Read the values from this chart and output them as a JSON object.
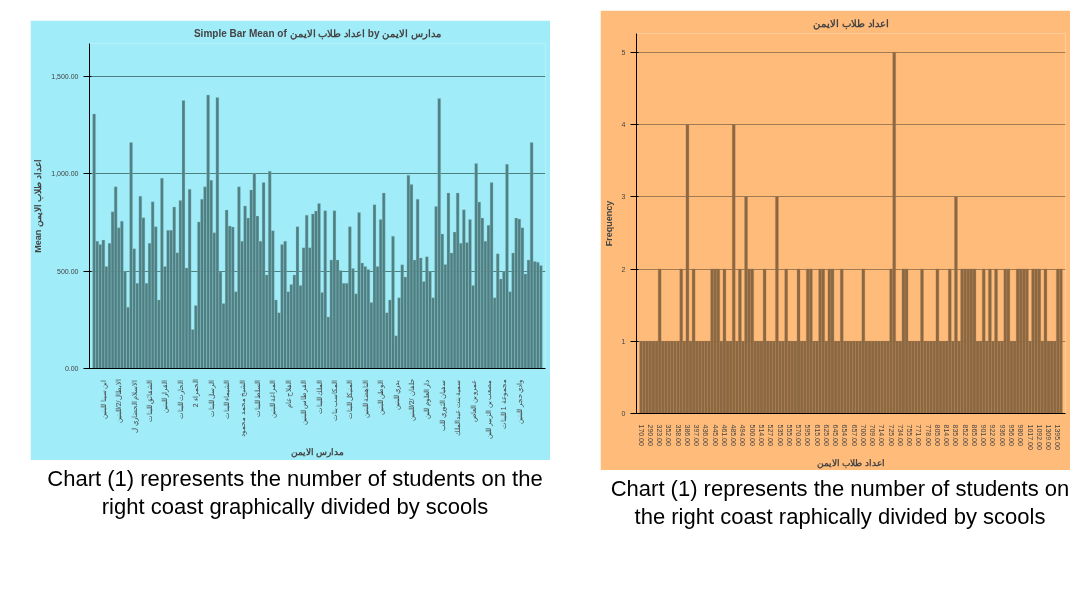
{
  "chart_data": [
    {
      "type": "bar",
      "title": "Simple Bar Mean of اعداد طلاب الايمن by مدارس الايمن",
      "xlabel": "مدارس الايمن",
      "ylabel": "Mean اعداد طلاب الايمن",
      "color": "#4f7f82",
      "categories": [
        null,
        null,
        null,
        "ابن سينا للبنين",
        null,
        null,
        null,
        null,
        "الابطال/2/للبنين",
        null,
        null,
        null,
        null,
        "الاسلام الحضاري ل",
        null,
        null,
        null,
        null,
        "الشقائق للبنات",
        null,
        null,
        null,
        null,
        "القرار للبنين",
        null,
        null,
        null,
        null,
        "الحارث للبنات",
        null,
        null,
        null,
        null,
        "الحمراء 2",
        null,
        null,
        null,
        null,
        "الرسل للبنات",
        null,
        null,
        null,
        null,
        "الشيماء للبنات",
        null,
        null,
        null,
        null,
        "الشيخ محمد محمود",
        null,
        null,
        null,
        null,
        "السلط للبنات",
        null,
        null,
        null,
        null,
        "المراغة للبنين",
        null,
        null,
        null,
        null,
        "الفلاح عام",
        null,
        null,
        null,
        null,
        "القرطاس للبنين",
        null,
        null,
        null,
        null,
        "الملك للبنات",
        null,
        null,
        null,
        null,
        "المكاسب بنات",
        null,
        null,
        null,
        null,
        "المنيكل للبنات",
        null,
        null,
        null,
        null,
        "الناهضة للبنين",
        null,
        null,
        null,
        null,
        "الوطن للبنين",
        null,
        null,
        null,
        null,
        "بدري للبنين",
        null,
        null,
        null,
        null,
        "حلفان /2/للبنين",
        null,
        null,
        null,
        null,
        "دار العلوم للبن",
        null,
        null,
        null,
        null,
        "سفيان الثوري للب",
        null,
        null,
        null,
        null,
        "سمية بنت عبدالملك",
        null,
        null,
        null,
        null,
        "عمرو بن العاص",
        null,
        null,
        null,
        null,
        "مصعب بن الزبير للبن",
        null,
        null,
        null,
        null,
        "مجموعة 1 للبنات",
        null,
        null,
        null,
        null,
        "وادي حجر للبنين",
        null,
        null,
        null,
        null,
        null,
        null,
        null
      ],
      "values": [
        1308,
        654,
        637,
        660,
        524,
        643,
        805,
        934,
        723,
        757,
        498,
        315,
        1161,
        615,
        438,
        885,
        775,
        438,
        643,
        857,
        729,
        352,
        978,
        524,
        710,
        710,
        830,
        595,
        863,
        1377,
        516,
        921,
        200,
        324,
        753,
        870,
        934,
        1405,
        967,
        697,
        1392,
        496,
        334,
        814,
        732,
        727,
        395,
        934,
        654,
        835,
        773,
        917,
        1003,
        783,
        654,
        956,
        481,
        1014,
        708,
        352,
        287,
        637,
        654,
        395,
        432,
        481,
        729,
        427,
        621,
        788,
        621,
        794,
        809,
        848,
        391,
        811,
        265,
        557,
        811,
        557,
        503,
        438,
        438,
        729,
        514,
        384,
        801,
        542,
        524,
        509,
        339,
        842,
        524,
        766,
        902,
        287,
        352,
        680,
        168,
        363,
        533,
        470,
        993,
        945,
        557,
        870,
        568,
        447,
        574,
        498,
        363,
        833,
        1388,
        691,
        535,
        902,
        594,
        701,
        902,
        643,
        816,
        647,
        766,
        427,
        1053,
        855,
        773,
        654,
        736,
        956,
        363,
        589,
        460,
        498,
        1049,
        395,
        594,
        773,
        768,
        723,
        486,
        557,
        1161,
        550,
        546,
        529
      ],
      "ylim": [
        0,
        1670
      ],
      "yticks": [
        {
          "value": 0,
          "label": "0.00"
        },
        {
          "value": 500,
          "label": "500.00"
        },
        {
          "value": 1000,
          "label": "1,000.00"
        },
        {
          "value": 1500,
          "label": "1,500.00"
        }
      ],
      "grid": "y",
      "annotations": [
        "Chart (1) represents the number of students on the right coast graphically divided by scools"
      ]
    },
    {
      "type": "bar",
      "title": "اعداد طلاب الايمن",
      "xlabel": "اعداد طلاب الايمن",
      "ylabel": "Frequency",
      "color": "#8b6842",
      "categories": [
        "170.00",
        null,
        null,
        "290.00",
        null,
        null,
        "323.00",
        null,
        null,
        "352.00",
        null,
        null,
        "358.00",
        null,
        null,
        "386.00",
        null,
        null,
        "397.00",
        null,
        null,
        "436.00",
        null,
        null,
        "445.00",
        null,
        null,
        "461.00",
        null,
        null,
        "485.00",
        null,
        null,
        "494.00",
        null,
        null,
        "500.00",
        null,
        null,
        "514.00",
        null,
        null,
        "527.00",
        null,
        null,
        "535.00",
        null,
        null,
        "555.00",
        null,
        null,
        "570.00",
        null,
        null,
        "595.00",
        null,
        null,
        "615.00",
        null,
        null,
        "625.00",
        null,
        null,
        "645.00",
        null,
        null,
        "654.00",
        null,
        null,
        "657.00",
        null,
        null,
        "700.00",
        null,
        null,
        "709.00",
        null,
        null,
        "714.00",
        null,
        null,
        "725.00",
        null,
        null,
        "734.00",
        null,
        null,
        "755.00",
        null,
        null,
        "771.00",
        null,
        null,
        "778.00",
        null,
        null,
        "805.00",
        null,
        null,
        "814.00",
        null,
        null,
        "835.00",
        null,
        null,
        "852.00",
        null,
        null,
        "865.00",
        null,
        null,
        "901.00",
        null,
        null,
        "922.00",
        null,
        null,
        "936.00",
        null,
        null,
        "956.00",
        null,
        null,
        "980.00",
        null,
        null,
        "1017.00",
        null,
        null,
        "1092.00",
        null,
        null,
        "1309.00",
        null,
        null,
        "1395.00",
        null
      ],
      "values": [
        1,
        1,
        1,
        1,
        1,
        1,
        2,
        1,
        1,
        1,
        1,
        1,
        1,
        2,
        1,
        4,
        1,
        2,
        1,
        1,
        1,
        1,
        1,
        2,
        2,
        2,
        1,
        2,
        1,
        1,
        4,
        1,
        2,
        1,
        3,
        2,
        2,
        1,
        1,
        1,
        2,
        1,
        1,
        1,
        3,
        1,
        1,
        2,
        1,
        1,
        1,
        2,
        1,
        1,
        2,
        2,
        1,
        1,
        2,
        2,
        1,
        2,
        2,
        1,
        1,
        2,
        1,
        1,
        1,
        1,
        1,
        1,
        2,
        1,
        1,
        1,
        1,
        1,
        1,
        1,
        1,
        2,
        5,
        1,
        1,
        2,
        2,
        1,
        1,
        1,
        1,
        2,
        1,
        1,
        1,
        1,
        2,
        1,
        1,
        1,
        2,
        1,
        3,
        1,
        2,
        2,
        2,
        2,
        2,
        1,
        1,
        2,
        1,
        2,
        1,
        2,
        1,
        1,
        2,
        2,
        1,
        1,
        2,
        2,
        2,
        2,
        1,
        2,
        2,
        2,
        1,
        2,
        1,
        1,
        1,
        2,
        2
      ],
      "ylim": [
        0,
        5.26
      ],
      "yticks": [
        0,
        1,
        2,
        3,
        4,
        5
      ],
      "grid": "y",
      "annotations": [
        "Chart (1) represents the number of students on the right coast raphically divided by scools"
      ]
    }
  ]
}
